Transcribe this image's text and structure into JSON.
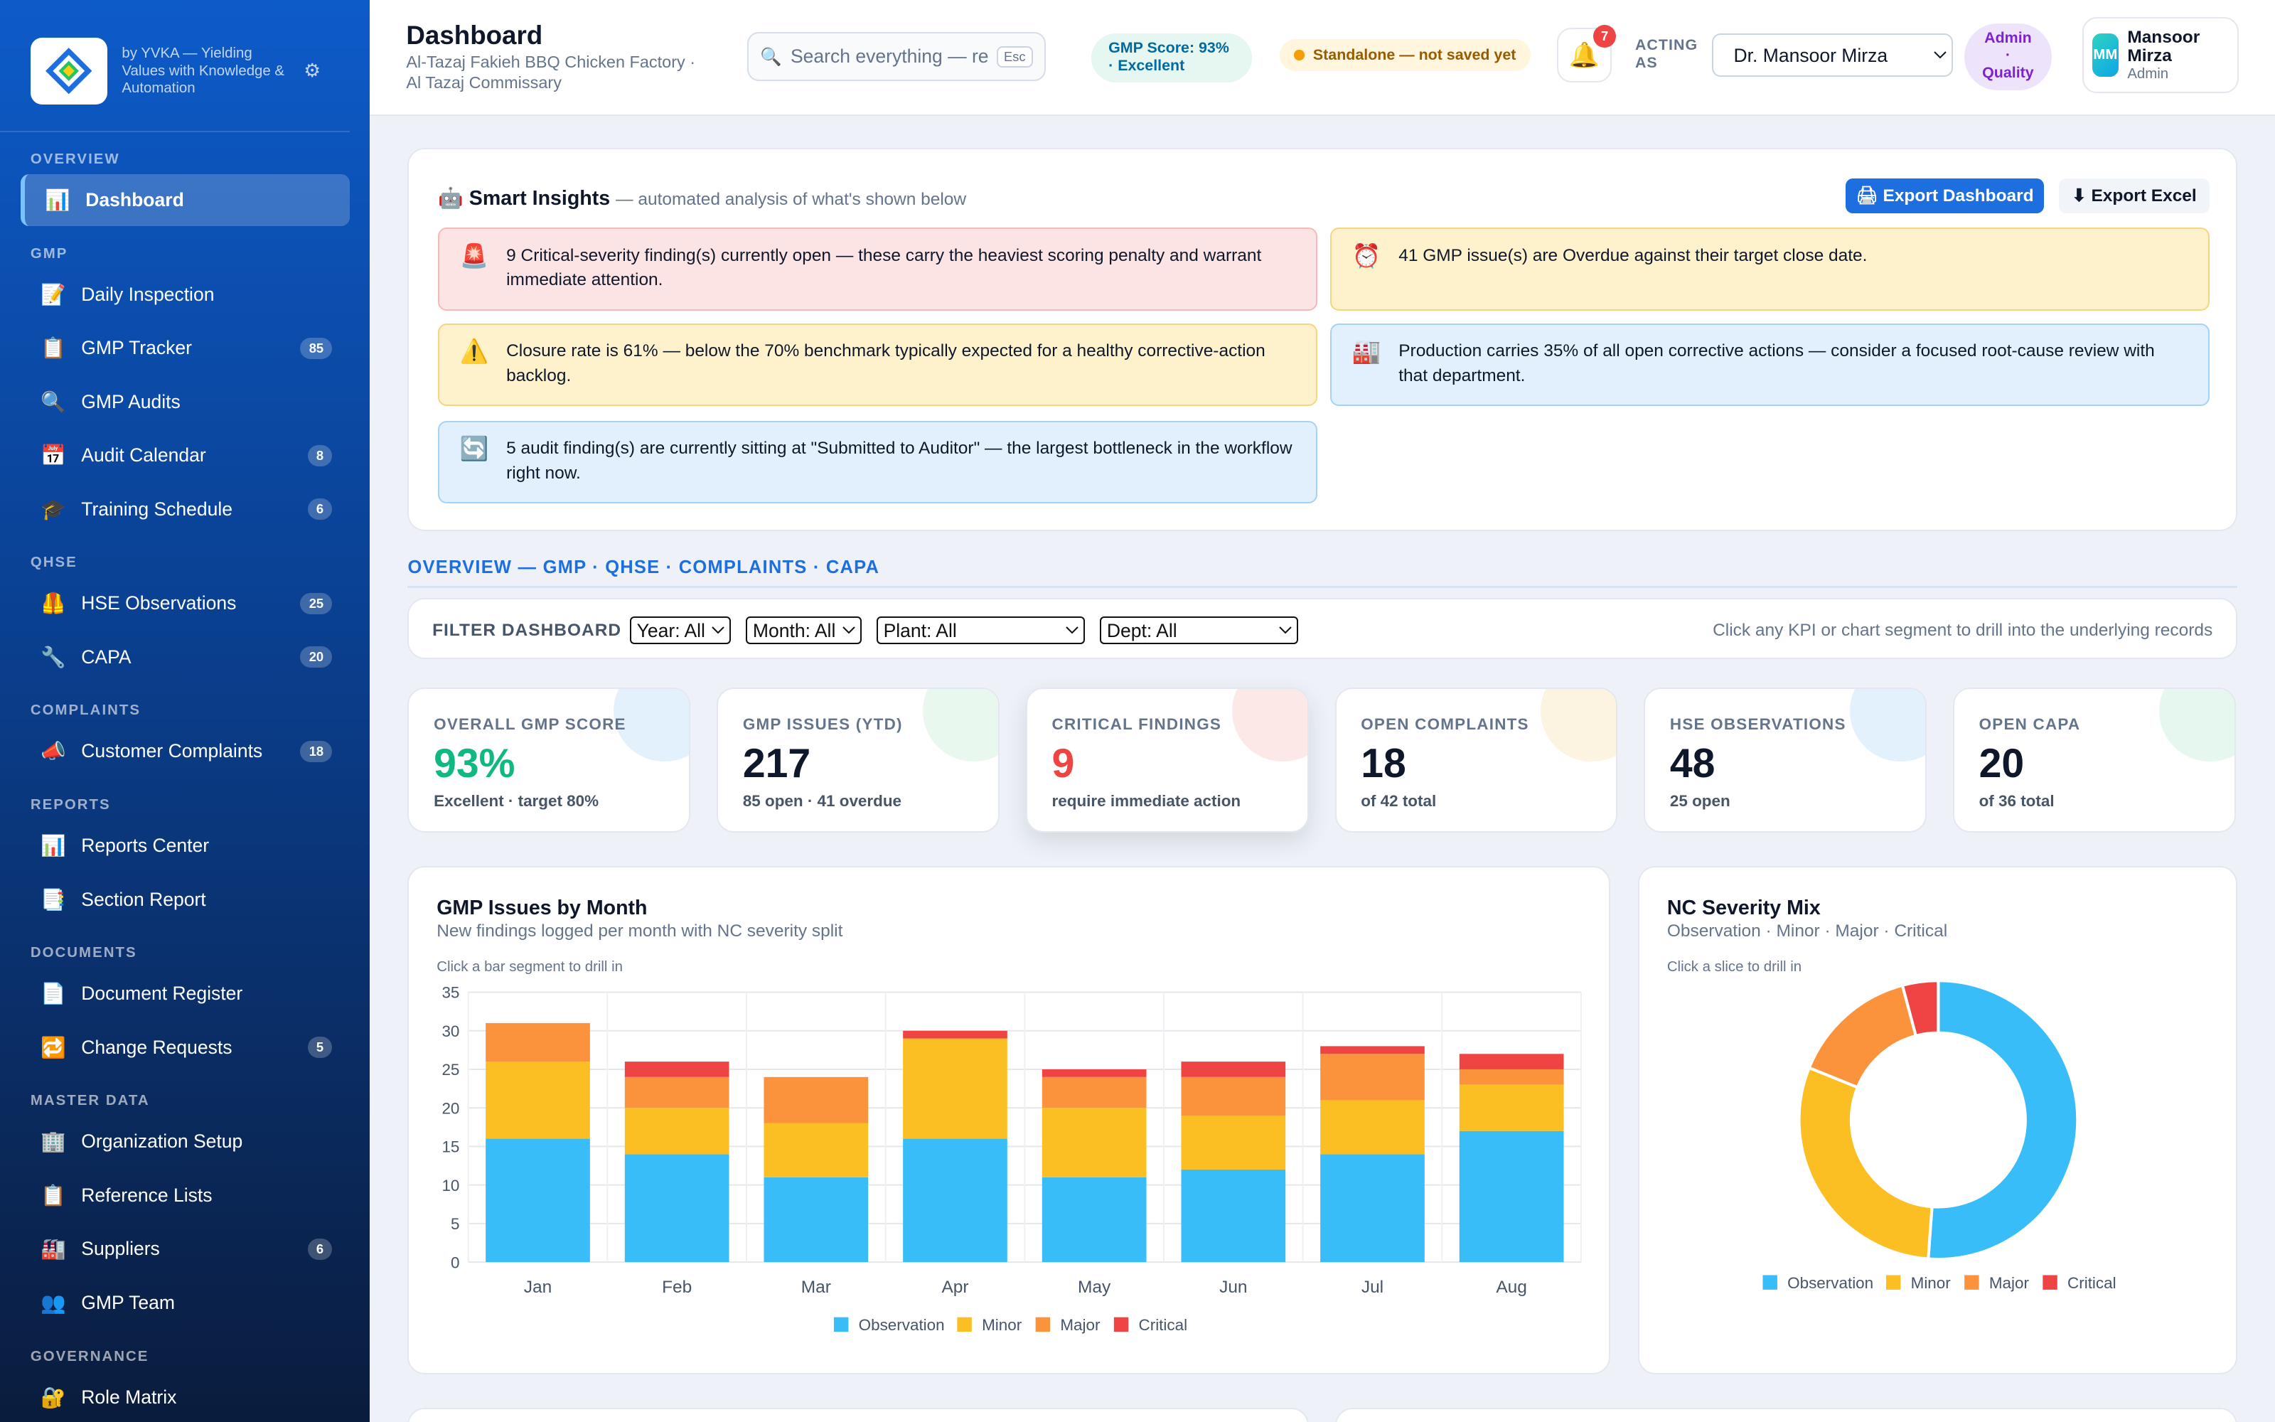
{
  "brand": {
    "tagline": "by YVKA — Yielding Values with Knowledge & Automation"
  },
  "sidebar": {
    "sections": [
      {
        "title": "OVERVIEW",
        "items": [
          {
            "icon": "📊",
            "label": "Dashboard",
            "badge": "",
            "active": true
          }
        ]
      },
      {
        "title": "GMP",
        "items": [
          {
            "icon": "📝",
            "label": "Daily Inspection",
            "badge": ""
          },
          {
            "icon": "📋",
            "label": "GMP Tracker",
            "badge": "85"
          },
          {
            "icon": "🔍",
            "label": "GMP Audits",
            "badge": ""
          },
          {
            "icon": "📅",
            "label": "Audit Calendar",
            "badge": "8"
          },
          {
            "icon": "🎓",
            "label": "Training Schedule",
            "badge": "6"
          }
        ]
      },
      {
        "title": "QHSE",
        "items": [
          {
            "icon": "🦺",
            "label": "HSE Observations",
            "badge": "25"
          },
          {
            "icon": "🔧",
            "label": "CAPA",
            "badge": "20"
          }
        ]
      },
      {
        "title": "COMPLAINTS",
        "items": [
          {
            "icon": "📣",
            "label": "Customer Complaints",
            "badge": "18"
          }
        ]
      },
      {
        "title": "REPORTS",
        "items": [
          {
            "icon": "📊",
            "label": "Reports Center",
            "badge": ""
          },
          {
            "icon": "📑",
            "label": "Section Report",
            "badge": ""
          }
        ]
      },
      {
        "title": "DOCUMENTS",
        "items": [
          {
            "icon": "📄",
            "label": "Document Register",
            "badge": ""
          },
          {
            "icon": "🔁",
            "label": "Change Requests",
            "badge": "5"
          }
        ]
      },
      {
        "title": "MASTER DATA",
        "items": [
          {
            "icon": "🏢",
            "label": "Organization Setup",
            "badge": ""
          },
          {
            "icon": "📋",
            "label": "Reference Lists",
            "badge": ""
          },
          {
            "icon": "🏭",
            "label": "Suppliers",
            "badge": "6"
          },
          {
            "icon": "👥",
            "label": "GMP Team",
            "badge": ""
          }
        ]
      },
      {
        "title": "GOVERNANCE",
        "items": [
          {
            "icon": "🔐",
            "label": "Role Matrix",
            "badge": ""
          }
        ]
      }
    ]
  },
  "header": {
    "title": "Dashboard",
    "subtitle": "Al-Tazaj Fakieh BBQ Chicken Factory · Al Tazaj Commissary",
    "search_placeholder": "Search everything — records, people, documents",
    "search_kbd": "Esc",
    "gmp_score": "GMP Score: 93% · Excellent",
    "standalone": "Standalone — not saved yet",
    "notifications": "7",
    "acting_as_label": "ACTING AS",
    "acting_as_value": "Dr. Mansoor Mirza",
    "role_badge": "Admin · Quality",
    "user_initials": "MM",
    "user_name": "Mansoor Mirza",
    "user_role": "Admin"
  },
  "insights": {
    "title": "🤖 Smart Insights",
    "subtitle": "— automated analysis of what's shown below",
    "export_dashboard": "🖨 Export Dashboard",
    "export_excel": "⬇ Export Excel",
    "alerts": [
      {
        "icon": "🚨",
        "tone": "red",
        "text": "9 Critical-severity finding(s) currently open — these carry the heaviest scoring penalty and warrant immediate attention."
      },
      {
        "icon": "⏰",
        "tone": "yellow",
        "text": "41 GMP issue(s) are Overdue against their target close date."
      },
      {
        "icon": "⚠️",
        "tone": "yellow",
        "text": "Closure rate is 61% — below the 70% benchmark typically expected for a healthy corrective-action backlog."
      },
      {
        "icon": "🏭",
        "tone": "blue",
        "text": "Production carries 35% of all open corrective actions — consider a focused root-cause review with that department."
      },
      {
        "icon": "🔄",
        "tone": "blue",
        "text": "5 audit finding(s) are currently sitting at \"Submitted to Auditor\" — the largest bottleneck in the workflow right now."
      }
    ]
  },
  "section_heading": "OVERVIEW — GMP · QHSE · COMPLAINTS · CAPA",
  "filters": {
    "label": "FILTER DASHBOARD",
    "year": "Year: All",
    "month": "Month: All",
    "plant": "Plant: All",
    "dept": "Dept: All",
    "hint": "Click any KPI or chart segment to drill into the underlying records"
  },
  "kpis": [
    {
      "label": "OVERALL GMP SCORE",
      "value": "93%",
      "sub": "Excellent · target 80%",
      "value_color": "#10b981",
      "blob": "#e3f1fd"
    },
    {
      "label": "GMP ISSUES (YTD)",
      "value": "217",
      "sub": "85 open · 41 overdue",
      "value_color": "#0f172a",
      "blob": "#e9f8ee"
    },
    {
      "label": "CRITICAL FINDINGS",
      "value": "9",
      "sub": "require immediate action",
      "value_color": "#ef4444",
      "blob": "#fde8e8"
    },
    {
      "label": "OPEN COMPLAINTS",
      "value": "18",
      "sub": "of 42 total",
      "value_color": "#0f172a",
      "blob": "#fdf3e1"
    },
    {
      "label": "HSE OBSERVATIONS",
      "value": "48",
      "sub": "25 open",
      "value_color": "#0f172a",
      "blob": "#e3f1fd"
    },
    {
      "label": "OPEN CAPA",
      "value": "20",
      "sub": "of 36 total",
      "value_color": "#0f172a",
      "blob": "#e6f7ef"
    }
  ],
  "bar_chart": {
    "title": "GMP Issues by Month",
    "subtitle": "New findings logged per month with NC severity split",
    "hint": "Click a bar segment to drill in"
  },
  "donut_chart": {
    "title": "NC Severity Mix",
    "subtitle": "Observation · Minor · Major · Critical",
    "hint": "Click a slice to drill in"
  },
  "chart_data": [
    {
      "type": "bar",
      "stacked": true,
      "categories": [
        "Jan",
        "Feb",
        "Mar",
        "Apr",
        "May",
        "Jun",
        "Jul",
        "Aug"
      ],
      "series": [
        {
          "name": "Observation",
          "color": "#38bdf8",
          "values": [
            16,
            14,
            11,
            16,
            11,
            12,
            14,
            17
          ]
        },
        {
          "name": "Minor",
          "color": "#fbbf24",
          "values": [
            10,
            6,
            7,
            13,
            9,
            7,
            7,
            6
          ]
        },
        {
          "name": "Major",
          "color": "#fb923c",
          "values": [
            5,
            4,
            6,
            0,
            4,
            5,
            6,
            2
          ]
        },
        {
          "name": "Critical",
          "color": "#ef4444",
          "values": [
            0,
            2,
            0,
            1,
            1,
            2,
            1,
            2
          ]
        }
      ],
      "ylim": [
        0,
        35
      ],
      "yticks": [
        0,
        5,
        10,
        15,
        20,
        25,
        30,
        35
      ],
      "grid": true,
      "legend": "bottom"
    },
    {
      "type": "pie",
      "donut": true,
      "labels": [
        "Observation",
        "Minor",
        "Major",
        "Critical"
      ],
      "values": [
        111,
        65,
        32,
        9
      ],
      "colors": [
        "#38bdf8",
        "#fbbf24",
        "#fb923c",
        "#ef4444"
      ],
      "legend": "bottom"
    }
  ]
}
